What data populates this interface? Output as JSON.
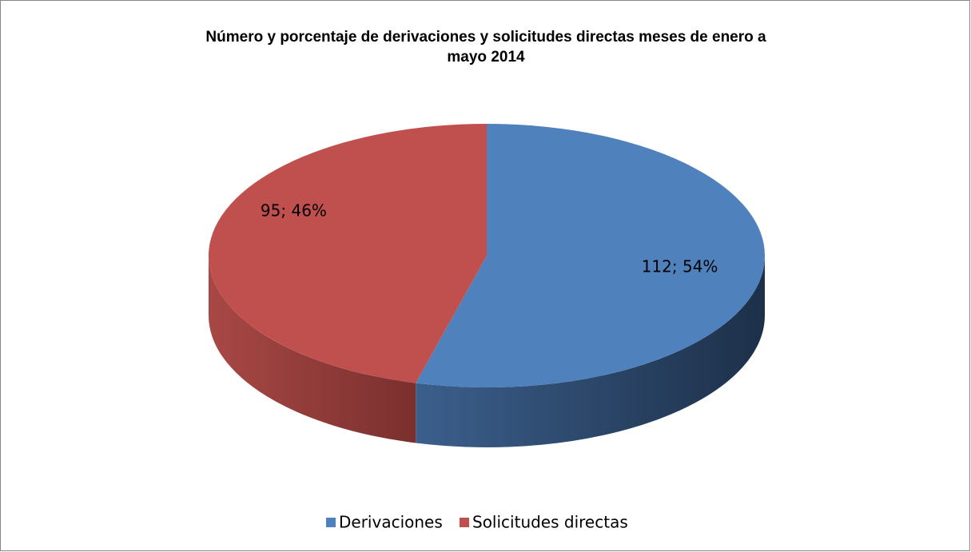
{
  "chart_data": {
    "type": "pie3d",
    "title": "Número y porcentaje de derivaciones y solicitudes directas meses de enero a mayo 2014",
    "title_lines": [
      "Número y porcentaje de derivaciones y solicitudes directas meses de enero a",
      "mayo 2014"
    ],
    "categories": [
      "Derivaciones",
      "Solicitudes directas"
    ],
    "values": [
      112,
      95
    ],
    "value_labels": [
      "112; 54%",
      "95; 46%"
    ],
    "colors": [
      "#4f81bd",
      "#c0504d"
    ],
    "legend": "bottom"
  }
}
